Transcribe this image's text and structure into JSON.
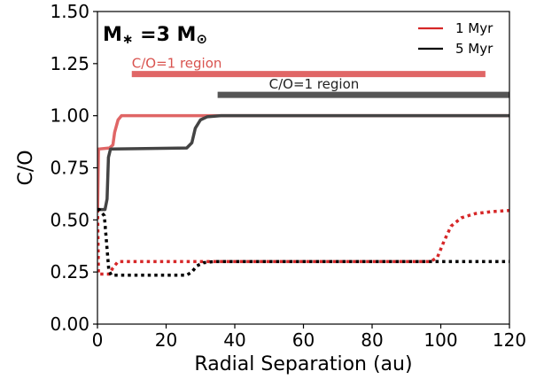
{
  "chart_data": {
    "type": "line",
    "title": "",
    "xlabel": "Radial Separation (au)",
    "ylabel": "C/O",
    "xlim": [
      0,
      120
    ],
    "ylim": [
      0,
      1.5
    ],
    "xticks": [
      0,
      20,
      40,
      60,
      80,
      100,
      120
    ],
    "yticks": [
      0.0,
      0.25,
      0.5,
      0.75,
      1.0,
      1.25,
      1.5
    ],
    "ytick_labels": [
      "0.00",
      "0.25",
      "0.50",
      "0.75",
      "1.00",
      "1.25",
      "1.50"
    ],
    "grid": false,
    "legend": {
      "placement": "top-right",
      "entries": [
        {
          "label": "1 Myr",
          "color": "#d62728"
        },
        {
          "label": "5 Myr",
          "color": "#000000"
        }
      ]
    },
    "annotation": {
      "main": "M",
      "subscript": "∗",
      "equals": " =3 M",
      "sun": "⊙"
    },
    "regions": [
      {
        "label": "C/O=1 region",
        "x": [
          10,
          113
        ],
        "y": 1.2,
        "color": "#e06666"
      },
      {
        "label": "C/O=1 region",
        "x": [
          35,
          120
        ],
        "y": 1.1,
        "color": "#555555"
      }
    ],
    "series": [
      {
        "style": "solid",
        "color": "#e06666",
        "points": [
          [
            0.05,
            0.55
          ],
          [
            0.3,
            0.84
          ],
          [
            3.5,
            0.845
          ],
          [
            4.5,
            0.86
          ],
          [
            5,
            0.92
          ],
          [
            6,
            0.98
          ],
          [
            7,
            1.0
          ],
          [
            120,
            1.0
          ]
        ]
      },
      {
        "style": "solid",
        "color": "#444444",
        "points": [
          [
            0.05,
            0.55
          ],
          [
            1.0,
            0.55
          ],
          [
            2.2,
            0.55
          ],
          [
            2.8,
            0.6
          ],
          [
            3.2,
            0.8
          ],
          [
            3.8,
            0.84
          ],
          [
            26,
            0.845
          ],
          [
            27.5,
            0.87
          ],
          [
            28.5,
            0.94
          ],
          [
            30,
            0.98
          ],
          [
            32,
            0.995
          ],
          [
            36,
            1.0
          ],
          [
            120,
            1.0
          ]
        ]
      },
      {
        "style": "dotted",
        "color": "#d62728",
        "points": [
          [
            0.05,
            0.55
          ],
          [
            0.3,
            0.24
          ],
          [
            3.5,
            0.24
          ],
          [
            4.5,
            0.27
          ],
          [
            6,
            0.3
          ],
          [
            97,
            0.3
          ],
          [
            99,
            0.32
          ],
          [
            101,
            0.4
          ],
          [
            103,
            0.47
          ],
          [
            106,
            0.51
          ],
          [
            110,
            0.53
          ],
          [
            115,
            0.54
          ],
          [
            120,
            0.545
          ]
        ]
      },
      {
        "style": "dotted",
        "color": "#000000",
        "points": [
          [
            0.05,
            0.55
          ],
          [
            0.5,
            0.55
          ],
          [
            2.0,
            0.52
          ],
          [
            2.6,
            0.4
          ],
          [
            3.3,
            0.26
          ],
          [
            4,
            0.235
          ],
          [
            26,
            0.235
          ],
          [
            27.5,
            0.25
          ],
          [
            29,
            0.28
          ],
          [
            31,
            0.295
          ],
          [
            34,
            0.3
          ],
          [
            120,
            0.3
          ]
        ]
      }
    ]
  }
}
